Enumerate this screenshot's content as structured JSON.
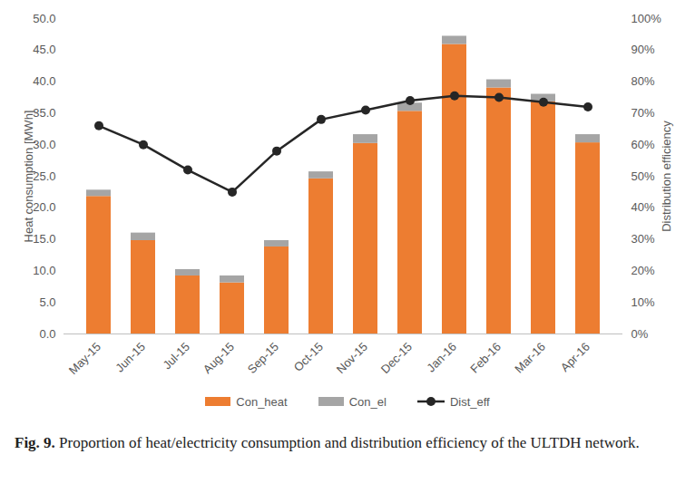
{
  "chart_data": {
    "type": "bar",
    "stacked": true,
    "grid": false,
    "legend": "bottom",
    "caption": {
      "label": "Fig. 9.",
      "text": "Proportion of heat/electricity consumption and distribution efficiency of the ULTDH network."
    },
    "y_label": "Heat consumption [MWh]",
    "y2_label": "Distribution efficiency",
    "categories": [
      "May-15",
      "Jun-15",
      "Jul-15",
      "Aug-15",
      "Sep-15",
      "Oct-15",
      "Nov-15",
      "Dec-15",
      "Jan-16",
      "Feb-16",
      "Mar-16",
      "Apr-16"
    ],
    "series": [
      {
        "name": "Con_heat",
        "type": "bar",
        "color": "#ed7d31",
        "values": [
          21.8,
          14.8,
          9.2,
          8.1,
          13.8,
          24.6,
          30.2,
          35.3,
          45.9,
          39.0,
          36.8,
          30.3
        ]
      },
      {
        "name": "Con_el",
        "type": "bar",
        "color": "#a5a5a5",
        "values": [
          1.0,
          1.2,
          1.0,
          1.1,
          1.0,
          1.1,
          1.4,
          1.3,
          1.3,
          1.3,
          1.2,
          1.3
        ]
      },
      {
        "name": "Dist_eff",
        "type": "line",
        "axis": "y2",
        "marker": "circle",
        "color": "#262626",
        "values": [
          66,
          60,
          52,
          45,
          58,
          68,
          71,
          74,
          75.5,
          75,
          73.5,
          72
        ]
      }
    ],
    "ylim": [
      0,
      50
    ],
    "yticks": [
      {
        "value": 0,
        "label": "0.0"
      },
      {
        "value": 5,
        "label": "5.0"
      },
      {
        "value": 10,
        "label": "10.0"
      },
      {
        "value": 15,
        "label": "15.0"
      },
      {
        "value": 20,
        "label": "20.0"
      },
      {
        "value": 25,
        "label": "25.0"
      },
      {
        "value": 30,
        "label": "30.0"
      },
      {
        "value": 35,
        "label": "35.0"
      },
      {
        "value": 40,
        "label": "40.0"
      },
      {
        "value": 45,
        "label": "45.0"
      },
      {
        "value": 50,
        "label": "50.0"
      }
    ],
    "y2lim": [
      0,
      100
    ],
    "y2ticks": [
      {
        "value": 0,
        "label": "0%"
      },
      {
        "value": 10,
        "label": "10%"
      },
      {
        "value": 20,
        "label": "20%"
      },
      {
        "value": 30,
        "label": "30%"
      },
      {
        "value": 40,
        "label": "40%"
      },
      {
        "value": 50,
        "label": "50%"
      },
      {
        "value": 60,
        "label": "60%"
      },
      {
        "value": 70,
        "label": "70%"
      },
      {
        "value": 80,
        "label": "80%"
      },
      {
        "value": 90,
        "label": "90%"
      },
      {
        "value": 100,
        "label": "100%"
      }
    ]
  }
}
